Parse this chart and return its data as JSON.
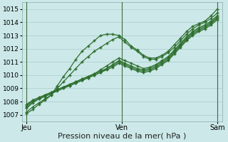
{
  "bg_color": "#cce8e8",
  "grid_color": "#aacccc",
  "line_color": "#2d6e2d",
  "xlabel": "Pression niveau de la mer( hPa )",
  "xlabel_fontsize": 8,
  "yticks": [
    1007,
    1008,
    1009,
    1010,
    1011,
    1012,
    1013,
    1014,
    1015
  ],
  "ylim": [
    1006.5,
    1015.5
  ],
  "xtick_labels": [
    "Jeu",
    "Ven",
    "Sam"
  ],
  "xtick_positions": [
    0,
    40,
    80
  ],
  "xlim": [
    -2,
    82
  ],
  "vlines": [
    0,
    40,
    80
  ],
  "series": [
    [
      1007.1,
      1007.4,
      1007.8,
      1008.1,
      1008.5,
      1009.2,
      1009.9,
      1010.5,
      1011.2,
      1011.8,
      1012.2,
      1012.6,
      1013.0,
      1013.1,
      1013.1,
      1013.0,
      1012.7,
      1012.2,
      1011.9,
      1011.5,
      1011.3,
      1011.3,
      1011.5,
      1011.8,
      1012.3,
      1012.8,
      1013.3,
      1013.7,
      1013.9,
      1014.1,
      1014.5,
      1015.0
    ],
    [
      1007.2,
      1007.6,
      1007.9,
      1008.2,
      1008.5,
      1009.0,
      1009.5,
      1010.0,
      1010.5,
      1011.0,
      1011.4,
      1011.8,
      1012.1,
      1012.4,
      1012.7,
      1012.9,
      1012.5,
      1012.1,
      1011.8,
      1011.4,
      1011.2,
      1011.2,
      1011.4,
      1011.7,
      1012.1,
      1012.6,
      1013.1,
      1013.5,
      1013.8,
      1014.0,
      1014.3,
      1014.7
    ],
    [
      1007.5,
      1007.9,
      1008.2,
      1008.4,
      1008.6,
      1008.9,
      1009.1,
      1009.3,
      1009.5,
      1009.7,
      1009.9,
      1010.1,
      1010.4,
      1010.7,
      1011.0,
      1011.3,
      1011.1,
      1010.9,
      1010.7,
      1010.5,
      1010.6,
      1010.8,
      1011.1,
      1011.4,
      1011.9,
      1012.4,
      1012.9,
      1013.3,
      1013.6,
      1013.8,
      1014.1,
      1014.5
    ],
    [
      1007.6,
      1008.0,
      1008.2,
      1008.4,
      1008.6,
      1008.8,
      1009.0,
      1009.2,
      1009.4,
      1009.6,
      1009.8,
      1010.0,
      1010.2,
      1010.5,
      1010.8,
      1011.1,
      1010.9,
      1010.7,
      1010.5,
      1010.4,
      1010.5,
      1010.7,
      1011.0,
      1011.3,
      1011.8,
      1012.3,
      1012.8,
      1013.2,
      1013.5,
      1013.7,
      1014.0,
      1014.4
    ],
    [
      1007.7,
      1008.1,
      1008.3,
      1008.5,
      1008.7,
      1008.9,
      1009.1,
      1009.3,
      1009.5,
      1009.7,
      1009.9,
      1010.1,
      1010.3,
      1010.5,
      1010.7,
      1011.0,
      1010.8,
      1010.6,
      1010.4,
      1010.3,
      1010.4,
      1010.6,
      1010.9,
      1011.2,
      1011.7,
      1012.2,
      1012.7,
      1013.1,
      1013.4,
      1013.6,
      1013.9,
      1014.3
    ],
    [
      1007.8,
      1008.1,
      1008.3,
      1008.5,
      1008.7,
      1008.9,
      1009.1,
      1009.2,
      1009.4,
      1009.6,
      1009.8,
      1010.0,
      1010.2,
      1010.4,
      1010.6,
      1010.9,
      1010.7,
      1010.5,
      1010.3,
      1010.2,
      1010.3,
      1010.5,
      1010.8,
      1011.1,
      1011.6,
      1012.1,
      1012.6,
      1013.0,
      1013.3,
      1013.5,
      1013.8,
      1014.2
    ]
  ],
  "marker": "+",
  "markersize": 3.5,
  "linewidth": 0.9
}
